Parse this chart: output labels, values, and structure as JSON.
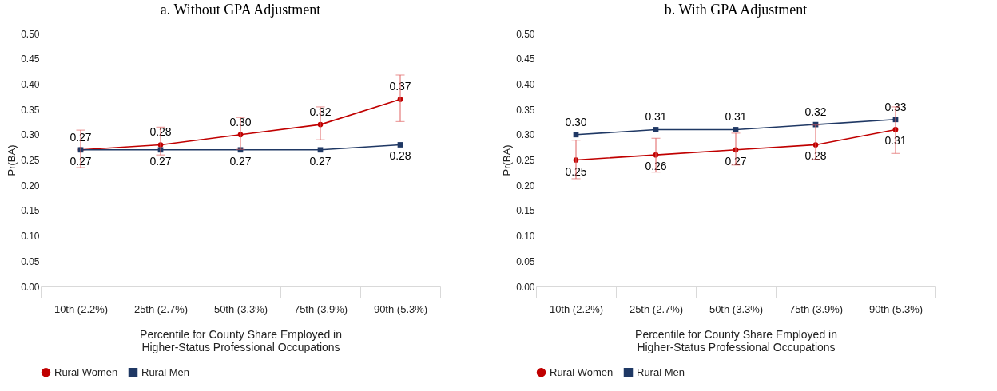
{
  "chart_data": [
    {
      "type": "line",
      "title": "a. Without GPA Adjustment",
      "xlabel": "Percentile for County Share Employed in\nHigher-Status Professional Occupations",
      "ylabel": "Pr(BA)",
      "categories": [
        "10th (2.2%)",
        "25th (2.7%)",
        "50th (3.3%)",
        "75th (3.9%)",
        "90th (5.3%)"
      ],
      "series": [
        {
          "name": "Rural Women",
          "color": "#c00000",
          "marker": "circle",
          "values": [
            0.27,
            0.28,
            0.3,
            0.32,
            0.37
          ],
          "value_labels": [
            "0.27",
            "0.28",
            "0.30",
            "0.32",
            "0.37"
          ],
          "errors": [
            [
              0.235,
              0.309
            ],
            [
              0.26,
              0.315
            ],
            [
              0.271,
              0.334
            ],
            [
              0.29,
              0.355
            ],
            [
              0.326,
              0.418
            ]
          ]
        },
        {
          "name": "Rural Men",
          "color": "#1f3864",
          "marker": "square",
          "values": [
            0.27,
            0.27,
            0.27,
            0.27,
            0.28
          ],
          "value_labels": [
            "0.27",
            "0.27",
            "0.27",
            "0.27",
            "0.28"
          ]
        }
      ],
      "ylim": [
        0,
        0.5
      ],
      "yticks": [
        {
          "value": 0,
          "label": "0.00"
        },
        {
          "value": 0.05,
          "label": "0.05"
        },
        {
          "value": 0.1,
          "label": "0.10"
        },
        {
          "value": 0.15,
          "label": "0.15"
        },
        {
          "value": 0.2,
          "label": "0.20"
        },
        {
          "value": 0.25,
          "label": "0.25"
        },
        {
          "value": 0.3,
          "label": "0.30"
        },
        {
          "value": 0.35,
          "label": "0.35"
        },
        {
          "value": 0.4,
          "label": "0.40"
        },
        {
          "value": 0.45,
          "label": "0.45"
        },
        {
          "value": 0.5,
          "label": "0.50"
        }
      ],
      "legend": "bottom",
      "grid": false,
      "line_style": "solid"
    },
    {
      "type": "line",
      "title": "b. With GPA Adjustment",
      "xlabel": "Percentile for County Share Employed in\nHigher-Status Professional Occupations",
      "ylabel": "Pr(BA)",
      "categories": [
        "10th (2.2%)",
        "25th (2.7%)",
        "50th (3.3%)",
        "75th (3.9%)",
        "90th (5.3%)"
      ],
      "series": [
        {
          "name": "Rural Women",
          "color": "#c00000",
          "marker": "circle",
          "values": [
            0.25,
            0.26,
            0.27,
            0.28,
            0.31
          ],
          "value_labels": [
            "0.25",
            "0.26",
            "0.27",
            "0.28",
            "0.31"
          ],
          "errors": [
            [
              0.213,
              0.289
            ],
            [
              0.226,
              0.293
            ],
            [
              0.24,
              0.303
            ],
            [
              0.251,
              0.319
            ],
            [
              0.263,
              0.355
            ]
          ]
        },
        {
          "name": "Rural Men",
          "color": "#1f3864",
          "marker": "square",
          "values": [
            0.3,
            0.31,
            0.31,
            0.32,
            0.33
          ],
          "value_labels": [
            "0.30",
            "0.31",
            "0.31",
            "0.32",
            "0.33"
          ]
        }
      ],
      "ylim": [
        0,
        0.5
      ],
      "yticks": [
        {
          "value": 0,
          "label": "0.00"
        },
        {
          "value": 0.05,
          "label": "0.05"
        },
        {
          "value": 0.1,
          "label": "0.10"
        },
        {
          "value": 0.15,
          "label": "0.15"
        },
        {
          "value": 0.2,
          "label": "0.20"
        },
        {
          "value": 0.25,
          "label": "0.25"
        },
        {
          "value": 0.3,
          "label": "0.30"
        },
        {
          "value": 0.35,
          "label": "0.35"
        },
        {
          "value": 0.4,
          "label": "0.40"
        },
        {
          "value": 0.45,
          "label": "0.45"
        },
        {
          "value": 0.5,
          "label": "0.50"
        }
      ],
      "legend": "bottom",
      "grid": false,
      "line_style": "solid"
    }
  ]
}
